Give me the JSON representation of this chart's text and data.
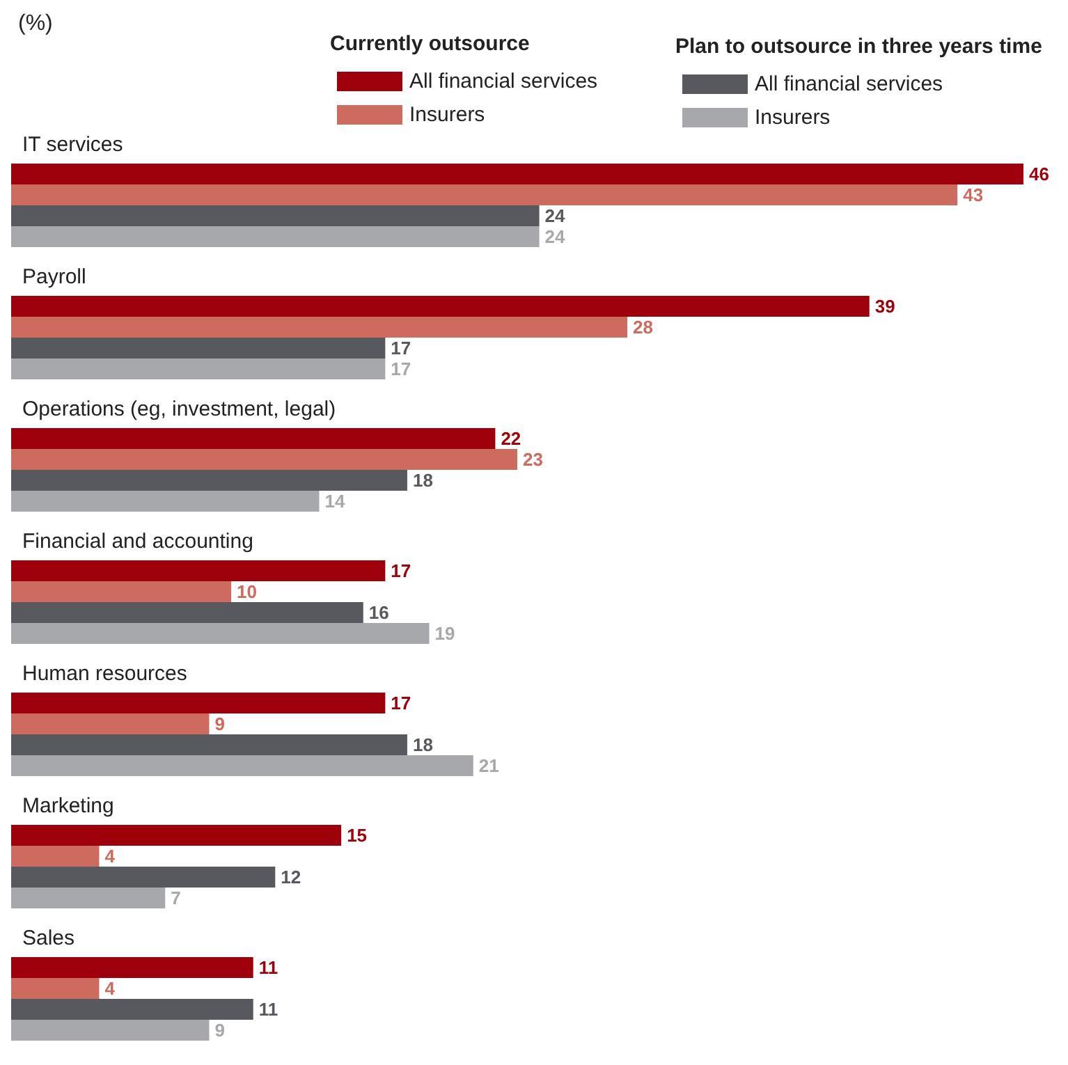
{
  "chart_data": {
    "type": "bar",
    "orientation": "horizontal",
    "subtitle": "(%)",
    "annotations": [
      "Currently outsource",
      "Plan to outsource in three years time"
    ],
    "categories": [
      "IT services",
      "Payroll",
      "Operations (eg, investment, legal)",
      "Financial and accounting",
      "Human resources",
      "Marketing",
      "Sales"
    ],
    "series": [
      {
        "name": "All financial services",
        "color": "#9e000c",
        "values": [
          46,
          39,
          22,
          17,
          17,
          15,
          11
        ]
      },
      {
        "name": "Insurers",
        "color": "#cc6b5e",
        "values": [
          43,
          28,
          23,
          10,
          9,
          4,
          4
        ]
      },
      {
        "name": "All financial services",
        "color": "#58595e",
        "values": [
          24,
          17,
          18,
          16,
          18,
          12,
          11
        ]
      },
      {
        "name": "Insurers",
        "color": "#a7a8ab",
        "values": [
          24,
          17,
          14,
          19,
          21,
          7,
          9
        ]
      }
    ],
    "data_labels": true,
    "grid": false,
    "legend": "top right"
  }
}
